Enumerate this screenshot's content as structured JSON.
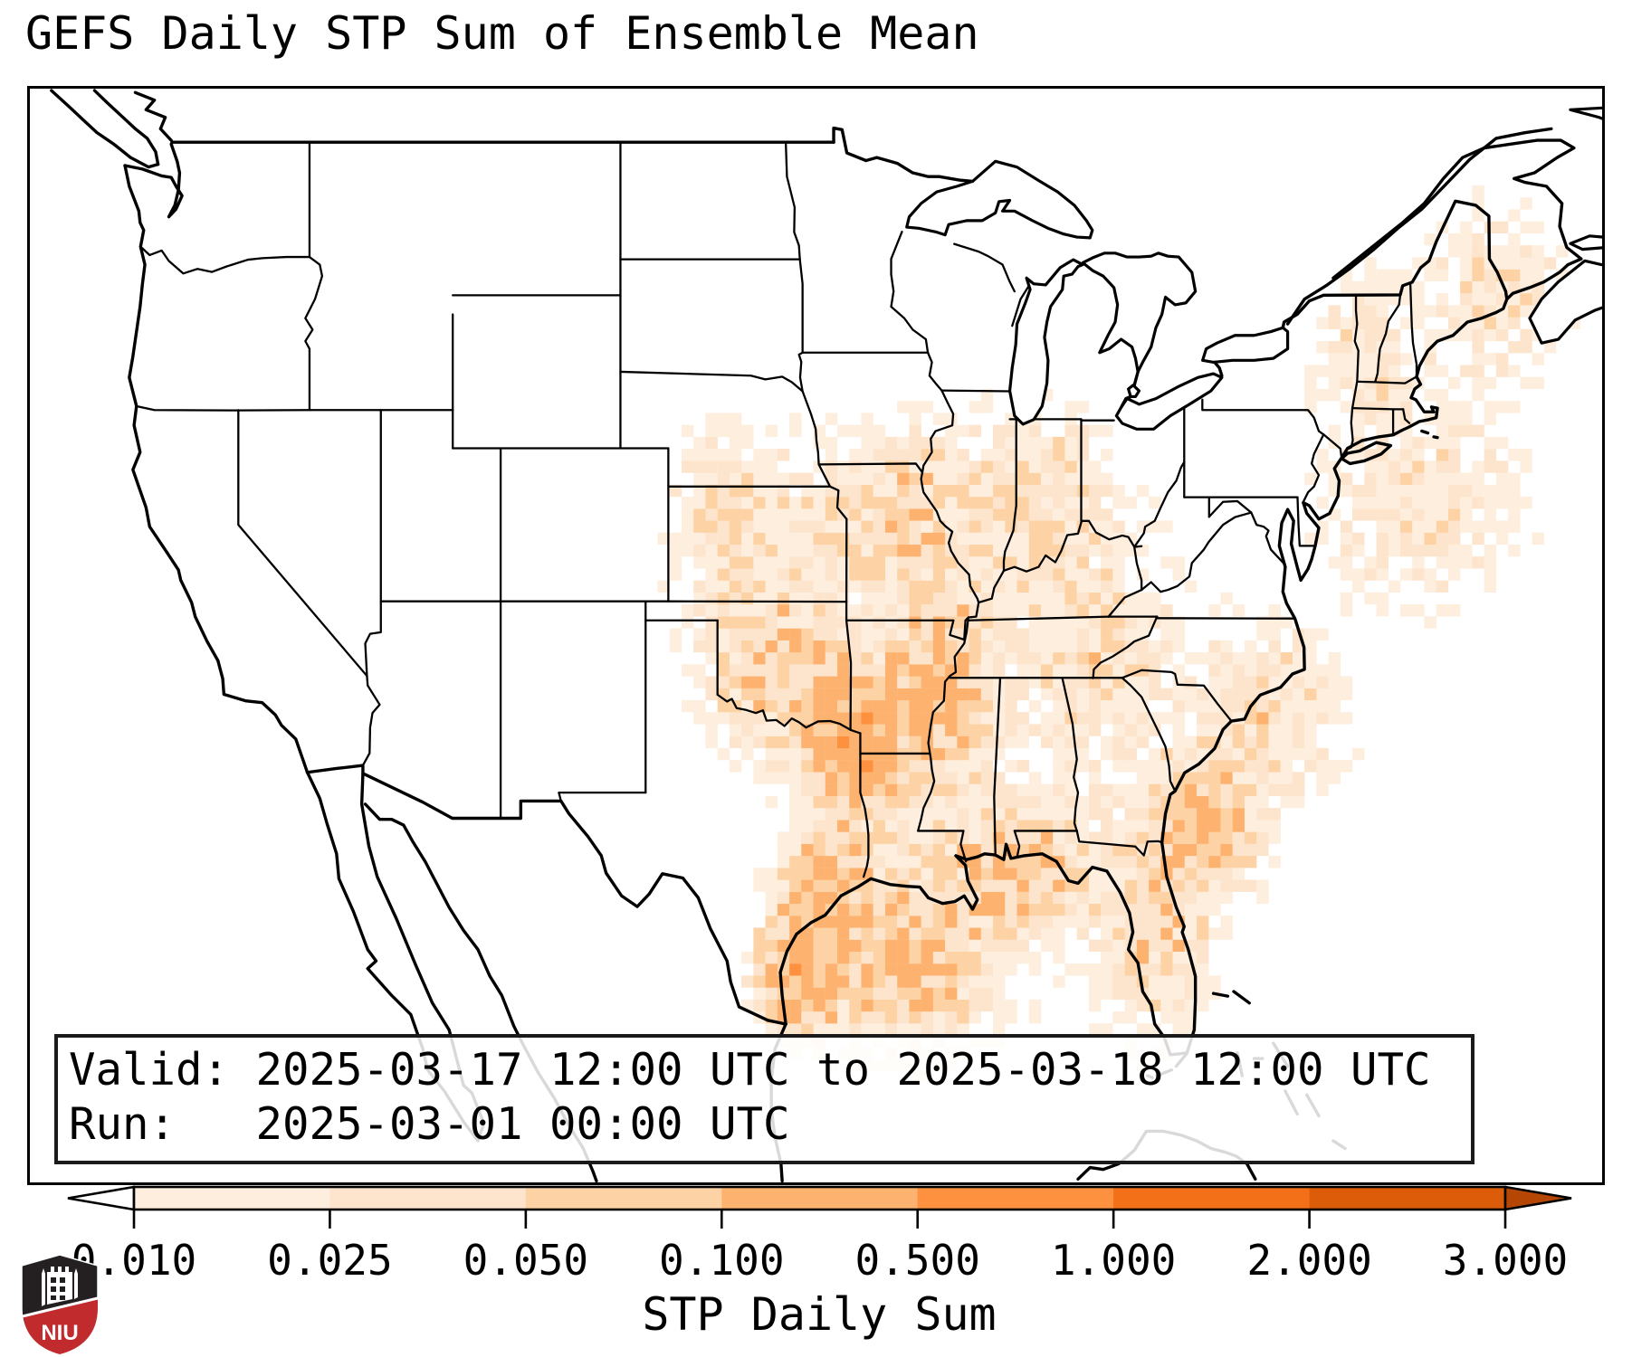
{
  "title": "GEFS Daily STP Sum of Ensemble Mean",
  "info_box": {
    "valid_line": "Valid: 2025-03-17 12:00 UTC to 2025-03-18 12:00 UTC",
    "run_line": "Run:   2025-03-01 00:00 UTC"
  },
  "colorbar": {
    "label": "STP Daily Sum",
    "tick_labels": [
      "0.010",
      "0.025",
      "0.050",
      "0.100",
      "0.500",
      "1.000",
      "2.000",
      "3.000"
    ],
    "levels": [
      0.01,
      0.025,
      0.05,
      0.1,
      0.5,
      1.0,
      2.0,
      3.0
    ],
    "segment_colors": [
      "#feeedd",
      "#fde4cc",
      "#fdd2a5",
      "#fdb26f",
      "#fd9140",
      "#f37018",
      "#dd5c0a"
    ],
    "under_color": "#ffffff",
    "over_color": "#b54603",
    "outline_color": "#000000"
  },
  "logo": {
    "text": "NIU",
    "shield_dark": "#242021",
    "shield_red": "#c22b2e"
  },
  "chart_data": {
    "type": "heatmap",
    "title": "GEFS Daily STP Sum of Ensemble Mean",
    "valid": "2025-03-17 12:00 UTC to 2025-03-18 12:00 UTC",
    "run": "2025-03-01 00:00 UTC",
    "units": "STP Daily Sum",
    "levels": [
      0.01,
      0.025,
      0.05,
      0.1,
      0.5,
      1.0,
      2.0,
      3.0
    ],
    "colors": [
      "#feeedd",
      "#fde4cc",
      "#fdd2a5",
      "#fdb26f",
      "#fd9140",
      "#f37018",
      "#dd5c0a"
    ],
    "max_band": "0.100-0.500",
    "extent": {
      "lon_min": -128.7,
      "lon_max": -63.1,
      "lat_min": 21.8,
      "lat_max": 50.4
    },
    "grid_deg": 0.5,
    "hotspots": [
      {
        "region": "NE Texas / SW Arkansas / NW Louisiana core",
        "lon": -94.1,
        "lat": 33.3,
        "sigma_lon": 1.6,
        "sigma_lat": 1.5,
        "amplitude": 0.42
      },
      {
        "region": "Houston / upper Texas coast",
        "lon": -95.6,
        "lat": 29.6,
        "sigma_lon": 1.2,
        "sigma_lat": 1.0,
        "amplitude": 0.28
      },
      {
        "region": "South Texas Gulf waters",
        "lon": -96.6,
        "lat": 27.3,
        "sigma_lon": 1.3,
        "sigma_lat": 1.2,
        "amplitude": 0.3
      },
      {
        "region": "Central Gulf of Mexico",
        "lon": -92.3,
        "lat": 27.8,
        "sigma_lon": 2.8,
        "sigma_lat": 1.8,
        "amplitude": 0.15
      },
      {
        "region": "Oklahoma",
        "lon": -97.6,
        "lat": 35.2,
        "sigma_lon": 2.2,
        "sigma_lat": 1.7,
        "amplitude": 0.11
      },
      {
        "region": "Missouri / Iowa / Illinois",
        "lon": -92.5,
        "lat": 39.3,
        "sigma_lon": 3.0,
        "sigma_lat": 2.0,
        "amplitude": 0.075
      },
      {
        "region": "Lower Mississippi valley",
        "lon": -90.6,
        "lat": 34.8,
        "sigma_lon": 1.6,
        "sigma_lat": 1.9,
        "amplitude": 0.17
      },
      {
        "region": "MS/AL/FL panhandle Gulf coast",
        "lon": -87.3,
        "lat": 30.0,
        "sigma_lon": 2.6,
        "sigma_lat": 1.3,
        "amplitude": 0.12
      },
      {
        "region": "Georgia offshore Atlantic",
        "lon": -79.7,
        "lat": 31.2,
        "sigma_lon": 1.6,
        "sigma_lat": 1.4,
        "amplitude": 0.21
      },
      {
        "region": "Carolinas coast",
        "lon": -76.8,
        "lat": 34.0,
        "sigma_lon": 2.4,
        "sigma_lat": 1.8,
        "amplitude": 0.06
      },
      {
        "region": "NE Atlantic offshore",
        "lon": -70.5,
        "lat": 39.5,
        "sigma_lon": 3.5,
        "sigma_lat": 2.2,
        "amplitude": 0.045
      },
      {
        "region": "Florida peninsula",
        "lon": -81.6,
        "lat": 28.6,
        "sigma_lon": 1.6,
        "sigma_lat": 2.2,
        "amplitude": 0.085
      },
      {
        "region": "Kansas / Nebraska light",
        "lon": -99.2,
        "lat": 38.9,
        "sigma_lon": 2.6,
        "sigma_lat": 2.2,
        "amplitude": 0.05
      },
      {
        "region": "Indiana / Ohio valley light",
        "lon": -86.5,
        "lat": 39.5,
        "sigma_lon": 2.6,
        "sigma_lat": 2.0,
        "amplitude": 0.055
      },
      {
        "region": "Tennessee valley light",
        "lon": -84.0,
        "lat": 35.5,
        "sigma_lon": 2.5,
        "sigma_lat": 1.8,
        "amplitude": 0.05
      },
      {
        "region": "Maine / New Brunswick light",
        "lon": -67.5,
        "lat": 45.0,
        "sigma_lon": 2.5,
        "sigma_lat": 2.0,
        "amplitude": 0.045
      },
      {
        "region": "New England light speckle",
        "lon": -73.0,
        "lat": 43.5,
        "sigma_lon": 2.0,
        "sigma_lat": 1.8,
        "amplitude": 0.04
      },
      {
        "region": "Broad southeast background",
        "lon": -88.0,
        "lat": 33.0,
        "sigma_lon": 9.0,
        "sigma_lat": 7.0,
        "amplitude": 0.018
      }
    ]
  }
}
